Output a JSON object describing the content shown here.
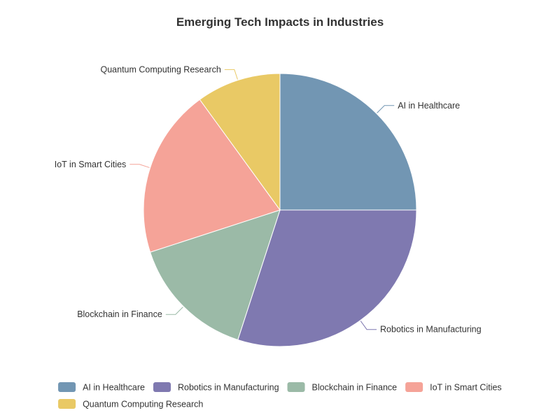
{
  "chart_data": {
    "type": "pie",
    "title": "Emerging Tech Impacts in Industries",
    "legend_position": "bottom",
    "slices": [
      {
        "name": "AI in Healthcare",
        "value": 25,
        "color": "#7296b3"
      },
      {
        "name": "Robotics in Manufacturing",
        "value": 30,
        "color": "#7f79b0"
      },
      {
        "name": "Blockchain in Finance",
        "value": 15,
        "color": "#9bbaa7"
      },
      {
        "name": "IoT in Smart Cities",
        "value": 20,
        "color": "#f5a398"
      },
      {
        "name": "Quantum Computing Research",
        "value": 10,
        "color": "#e9c965"
      }
    ]
  }
}
